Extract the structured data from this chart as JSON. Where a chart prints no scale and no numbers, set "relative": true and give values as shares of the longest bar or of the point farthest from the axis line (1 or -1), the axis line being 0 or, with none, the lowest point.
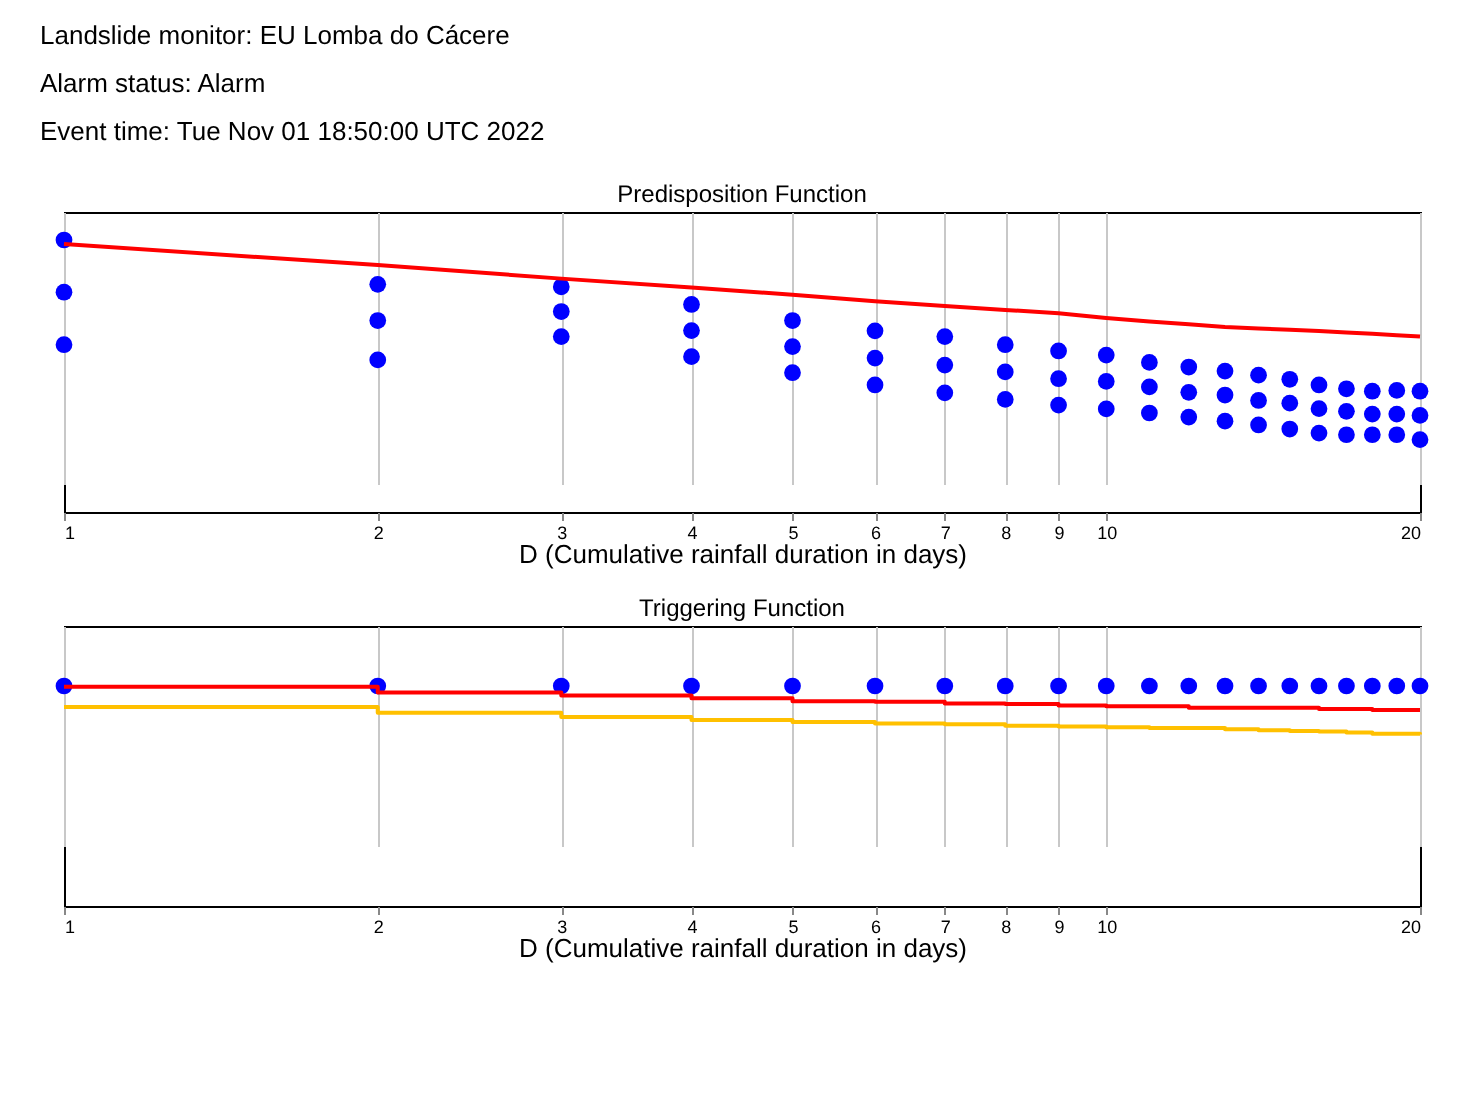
{
  "chart_data": [
    {
      "type": "other",
      "title": "Landslide monitor: EU Lomba do Cácere",
      "annotations": [
        "Alarm status: Alarm",
        "Event time: Tue Nov 01 18:50:00 UTC 2022"
      ]
    },
    {
      "type": "line",
      "title": "Predisposition Function",
      "xlabel": "D (Cumulative rainfall duration in days)",
      "x": [
        1,
        2,
        3,
        4,
        5,
        6,
        7,
        8,
        9,
        10,
        11,
        12,
        13,
        14,
        15,
        16,
        17,
        18,
        19,
        20
      ],
      "xlim": [
        1,
        20
      ],
      "xticks": [
        1,
        2,
        3,
        4,
        5,
        6,
        7,
        8,
        9,
        10,
        20
      ],
      "log": "x",
      "relative": true,
      "grid": "x",
      "tick_labels": "x",
      "series": [
        {
          "type": "scatter",
          "marker": "circle",
          "color": "#0000ff",
          "x": [
            1,
            1,
            1,
            2,
            2,
            2,
            3,
            3,
            3,
            4,
            4,
            4,
            5,
            5,
            5,
            6,
            6,
            6,
            7,
            7,
            7,
            8,
            8,
            8,
            9,
            9,
            9,
            10,
            10,
            10,
            11,
            11,
            11,
            12,
            12,
            12,
            13,
            13,
            13,
            14,
            14,
            14,
            15,
            15,
            15,
            16,
            16,
            16,
            17,
            17,
            17,
            18,
            18,
            18,
            19,
            19,
            19,
            20,
            20,
            20
          ],
          "values": [
            1.0,
            0.808,
            0.615,
            0.837,
            0.704,
            0.559,
            0.828,
            0.737,
            0.645,
            0.763,
            0.667,
            0.571,
            0.704,
            0.608,
            0.512,
            0.666,
            0.566,
            0.467,
            0.645,
            0.54,
            0.438,
            0.615,
            0.515,
            0.414,
            0.592,
            0.49,
            0.393,
            0.577,
            0.48,
            0.379,
            0.55,
            0.46,
            0.364,
            0.533,
            0.44,
            0.349,
            0.518,
            0.43,
            0.334,
            0.503,
            0.41,
            0.32,
            0.488,
            0.4,
            0.305,
            0.467,
            0.38,
            0.29,
            0.453,
            0.37,
            0.284,
            0.444,
            0.36,
            0.284,
            0.447,
            0.36,
            0.284,
            0.444,
            0.355,
            0.266
          ]
        },
        {
          "type": "line",
          "color": "#ff0000",
          "values": [
            0.985,
            0.908,
            0.858,
            0.825,
            0.799,
            0.775,
            0.757,
            0.743,
            0.731,
            0.713,
            0.7,
            0.69,
            0.68,
            0.675,
            0.67,
            0.665,
            0.66,
            0.655,
            0.65,
            0.645
          ]
        }
      ]
    },
    {
      "type": "line",
      "title": "Triggering Function",
      "xlabel": "D (Cumulative rainfall duration in days)",
      "x": [
        1,
        2,
        3,
        4,
        5,
        6,
        7,
        8,
        9,
        10,
        11,
        12,
        13,
        14,
        15,
        16,
        17,
        18,
        19,
        20
      ],
      "xlim": [
        1,
        20
      ],
      "xticks": [
        1,
        2,
        3,
        4,
        5,
        6,
        7,
        8,
        9,
        10,
        20
      ],
      "log": "x",
      "relative": true,
      "grid": "x",
      "tick_labels": "x",
      "series": [
        {
          "type": "scatter",
          "marker": "circle",
          "color": "#0000ff",
          "values": [
            1,
            1,
            1,
            1,
            1,
            1,
            1,
            1,
            1,
            1,
            1,
            1,
            1,
            1,
            1,
            1,
            1,
            1,
            1,
            1
          ]
        },
        {
          "type": "step",
          "color": "#ff0000",
          "values": [
            0.997,
            0.97,
            0.957,
            0.944,
            0.931,
            0.928,
            0.921,
            0.918,
            0.911,
            0.908,
            0.908,
            0.901,
            0.901,
            0.901,
            0.901,
            0.895,
            0.895,
            0.891,
            0.891,
            0.891
          ]
        },
        {
          "type": "step",
          "color": "#ffc000",
          "values": [
            0.905,
            0.878,
            0.859,
            0.845,
            0.836,
            0.829,
            0.826,
            0.819,
            0.816,
            0.813,
            0.809,
            0.809,
            0.803,
            0.799,
            0.796,
            0.793,
            0.789,
            0.783,
            0.783,
            0.78
          ]
        }
      ]
    }
  ]
}
